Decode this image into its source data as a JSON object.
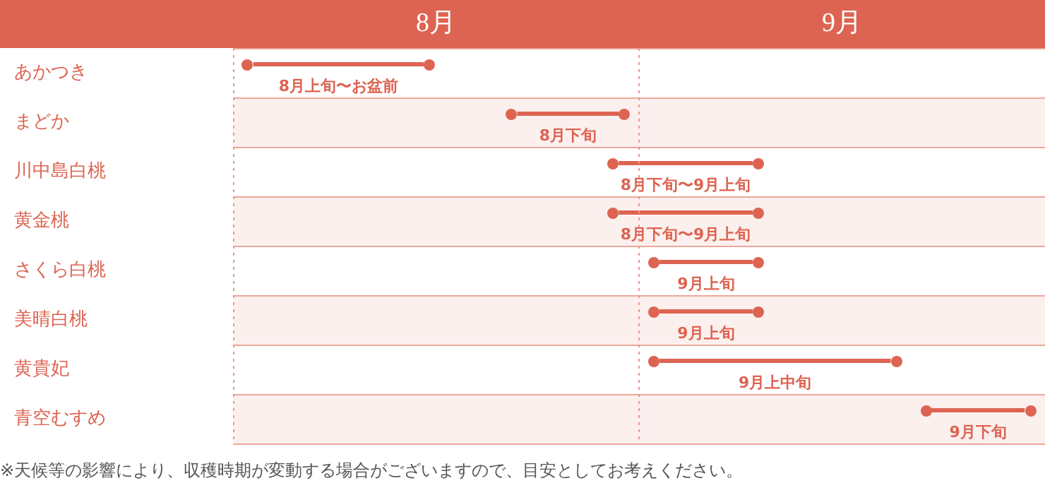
{
  "chart_data": {
    "type": "bar",
    "orientation": "horizontal",
    "marker": "circle",
    "categories": [
      "あかつき",
      "まどか",
      "川中島白桃",
      "黄金桃",
      "さくら白桃",
      "美晴白桃",
      "黄貴妃",
      "青空むすめ"
    ],
    "base": [
      8.05,
      8.7,
      8.95,
      8.95,
      9.05,
      9.05,
      9.05,
      9.72
    ],
    "values": [
      0.42,
      0.25,
      0.33,
      0.33,
      0.23,
      0.23,
      0.57,
      0.23
    ],
    "color": "#dd6452",
    "xlim": [
      8,
      10
    ],
    "xticks": [
      {
        "value": 8.5,
        "label": "8月"
      },
      {
        "value": 9.5,
        "label": "9月"
      }
    ],
    "ref_lines": [
      {
        "axis": "x",
        "value": 8,
        "color": "#e8978a",
        "line_style": "dotted"
      },
      {
        "axis": "x",
        "value": 9,
        "color": "#e8978a",
        "line_style": "dotted"
      }
    ],
    "annotations": [
      {
        "text": "8月上旬〜お盆前",
        "x": 8.26,
        "y": "あかつき"
      },
      {
        "text": "8月下旬",
        "x": 8.825,
        "y": "まどか"
      },
      {
        "text": "8月下旬〜9月上旬",
        "x": 9.115,
        "y": "川中島白桃"
      },
      {
        "text": "8月下旬〜9月上旬",
        "x": 9.115,
        "y": "黄金桃"
      },
      {
        "text": "9月上旬",
        "x": 9.165,
        "y": "さくら白桃"
      },
      {
        "text": "9月上旬",
        "x": 9.165,
        "y": "美晴白桃"
      },
      {
        "text": "9月上中旬",
        "x": 9.335,
        "y": "黄貴妃"
      },
      {
        "text": "9月下旬",
        "x": 9.835,
        "y": "青空むすめ"
      },
      "※天候等の影響により、収穫時期が変動する場合がございますので、目安としてお考えください。"
    ]
  }
}
